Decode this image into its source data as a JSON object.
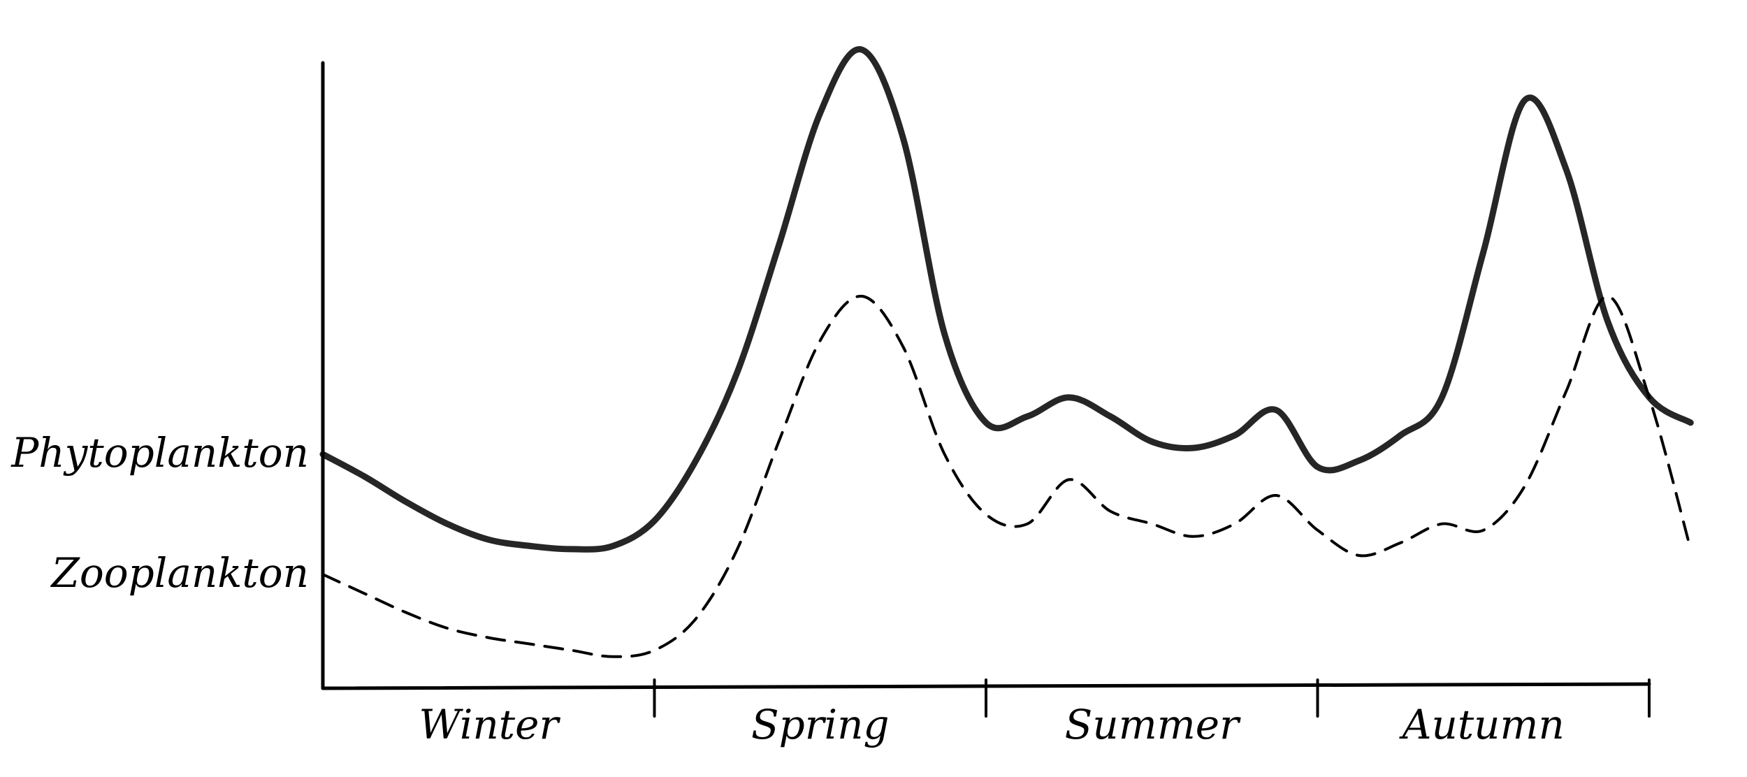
{
  "chart_data": {
    "type": "line",
    "title": "",
    "xlabel": "",
    "ylabel": "",
    "categories": [
      "Winter",
      "Spring",
      "Summer",
      "Autumn"
    ],
    "x": [
      0,
      0.125,
      0.25,
      0.375,
      0.5,
      0.625,
      0.75,
      0.875,
      1.0,
      1.125,
      1.25,
      1.375,
      1.5,
      1.625,
      1.75,
      1.875,
      2.0,
      2.125,
      2.25,
      2.375,
      2.5,
      2.625,
      2.75,
      2.875,
      3.0,
      3.125,
      3.25,
      3.375,
      3.5,
      3.625,
      3.75,
      3.875,
      4.0,
      4.125
    ],
    "xlim": [
      0,
      4
    ],
    "ylim": [
      0,
      10
    ],
    "grid": false,
    "legend": "none",
    "series": [
      {
        "name": "Phytoplankton",
        "style": "solid",
        "values": [
          3.7,
          3.35,
          2.95,
          2.6,
          2.35,
          2.25,
          2.2,
          2.25,
          2.65,
          3.6,
          5.0,
          7.0,
          9.1,
          10.1,
          8.7,
          5.6,
          4.2,
          4.3,
          4.6,
          4.3,
          3.9,
          3.8,
          4.0,
          4.4,
          3.5,
          3.6,
          4.0,
          4.6,
          6.9,
          9.3,
          8.2,
          5.8,
          4.6,
          4.2
        ]
      },
      {
        "name": "Zooplankton",
        "style": "dashed",
        "values": [
          1.8,
          1.5,
          1.2,
          0.95,
          0.8,
          0.7,
          0.6,
          0.5,
          0.6,
          1.1,
          2.2,
          3.9,
          5.5,
          6.2,
          5.4,
          3.7,
          2.75,
          2.6,
          3.3,
          2.8,
          2.6,
          2.4,
          2.6,
          3.05,
          2.5,
          2.1,
          2.3,
          2.6,
          2.5,
          3.2,
          4.7,
          6.2,
          4.6,
          2.2
        ]
      }
    ]
  }
}
